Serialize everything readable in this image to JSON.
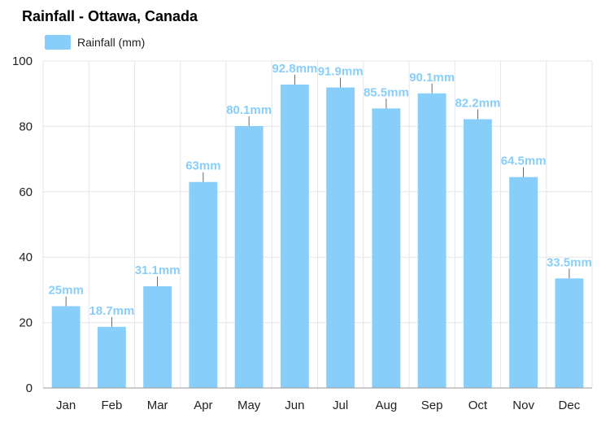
{
  "chart_data": {
    "type": "bar",
    "title": "Rainfall - Ottawa, Canada",
    "categories": [
      "Jan",
      "Feb",
      "Mar",
      "Apr",
      "May",
      "Jun",
      "Jul",
      "Aug",
      "Sep",
      "Oct",
      "Nov",
      "Dec"
    ],
    "series": [
      {
        "name": "Rainfall (mm)",
        "values": [
          25,
          18.7,
          31.1,
          63,
          80.1,
          92.8,
          91.9,
          85.5,
          90.1,
          82.2,
          64.5,
          33.5
        ],
        "labels": [
          "25mm",
          "18.7mm",
          "31.1mm",
          "63mm",
          "80.1mm",
          "92.8mm",
          "91.9mm",
          "85.5mm",
          "90.1mm",
          "82.2mm",
          "64.5mm",
          "33.5mm"
        ]
      }
    ],
    "ylim": [
      0,
      100
    ],
    "yticks": [
      0,
      20,
      40,
      60,
      80,
      100
    ],
    "xlabel": "",
    "ylabel": "",
    "grid": true,
    "legend_position": "top-left",
    "colors": {
      "bar": "#87cefa",
      "label": "#87cefa",
      "grid": "#e6e6e6"
    }
  }
}
